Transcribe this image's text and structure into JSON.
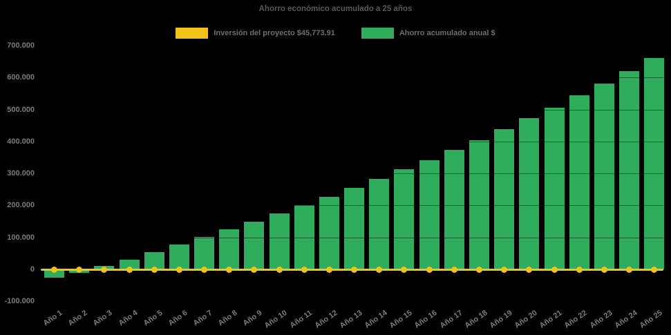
{
  "title": "Ahorro económico acumulado a 25 años",
  "legend": [
    {
      "label": "Inversión del proyecto $45,773.91",
      "color": "#EFC319",
      "type": "line"
    },
    {
      "label": "Ahorro acumulado anual $",
      "color": "#2FAC5C",
      "type": "bar"
    }
  ],
  "colors": {
    "background": "#000000",
    "bar_green": "#2FAC5C",
    "line_gold": "#EFC319",
    "title_text": "#585858",
    "legend_text": "#6e6e6e",
    "tick_text": "#7c7c7c"
  },
  "chart_data": {
    "type": "bar",
    "title": "Ahorro económico acumulado a 25 años",
    "xlabel": "",
    "ylabel": "",
    "ylim": [
      -100000,
      700000
    ],
    "grid": "subtle horizontal (visible only over bars)",
    "legend_position": "top",
    "categories": [
      "Año 1",
      "Año 2",
      "Año 3",
      "Año 4",
      "Año 5",
      "Año 6",
      "Año 7",
      "Año 8",
      "Año 9",
      "Año 10",
      "Año 11",
      "Año 12",
      "Año 13",
      "Año 14",
      "Año 15",
      "Año 16",
      "Año 17",
      "Año 18",
      "Año 19",
      "Año 20",
      "Año 21",
      "Año 22",
      "Año 23",
      "Año 24",
      "Año 25"
    ],
    "series": [
      {
        "name": "Ahorro acumulado anual $",
        "type": "bar",
        "color": "#2FAC5C",
        "values": [
          -26000,
          -11000,
          11000,
          31000,
          53000,
          77000,
          101000,
          126000,
          150000,
          174000,
          200000,
          226000,
          255000,
          283000,
          314000,
          342000,
          373000,
          404500,
          437500,
          472500,
          506000,
          543500,
          581000,
          620500,
          660000
        ]
      },
      {
        "name": "Inversión del proyecto $45,773.91",
        "type": "line",
        "color": "#EFC319",
        "marker": "circle",
        "values": [
          0,
          0,
          0,
          0,
          0,
          0,
          0,
          0,
          0,
          0,
          0,
          0,
          0,
          0,
          0,
          0,
          0,
          0,
          0,
          0,
          0,
          0,
          0,
          0,
          0
        ]
      }
    ],
    "y_ticks": [
      {
        "label": "700.000",
        "value": 700000
      },
      {
        "label": "600.000",
        "value": 600000
      },
      {
        "label": "500.000",
        "value": 500000
      },
      {
        "label": "400.000",
        "value": 400000
      },
      {
        "label": "300.000",
        "value": 300000
      },
      {
        "label": "200.000",
        "value": 200000
      },
      {
        "label": "100.000",
        "value": 100000
      },
      {
        "label": "0",
        "value": 0
      },
      {
        "label": "-100.000",
        "value": -100000
      }
    ]
  }
}
